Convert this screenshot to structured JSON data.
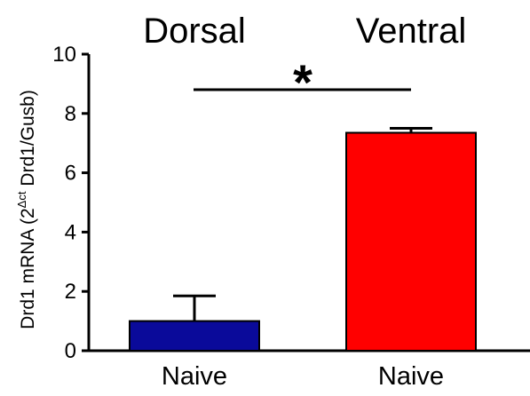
{
  "chart_data": {
    "type": "bar",
    "groups": [
      "Dorsal",
      "Ventral"
    ],
    "categories": [
      "Naive",
      "Naive"
    ],
    "values": [
      1.0,
      7.35
    ],
    "errors": [
      0.85,
      0.15
    ],
    "colors": [
      "#0a0a9a",
      "#ff0000"
    ],
    "ylabel_main": "Drd1 mRNA (2",
    "ylabel_sup": "Δct",
    "ylabel_end": " Drd1/Gusb)",
    "ylim": [
      0,
      10
    ],
    "yticks": [
      0,
      2,
      4,
      6,
      8,
      10
    ],
    "significance": "*",
    "grid": false
  }
}
